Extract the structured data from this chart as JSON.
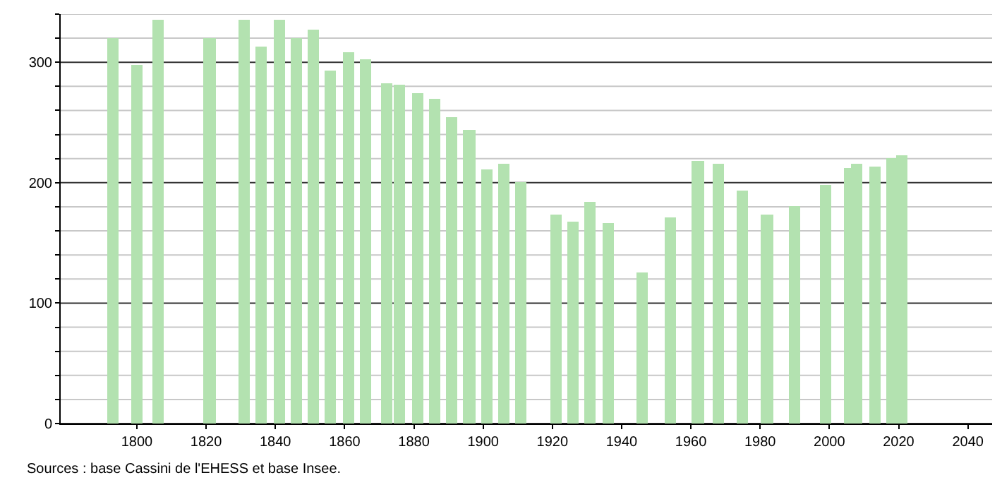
{
  "chart_data": {
    "type": "bar",
    "x": [
      1793,
      1800,
      1806,
      1821,
      1831,
      1836,
      1841,
      1846,
      1851,
      1856,
      1861,
      1866,
      1872,
      1876,
      1881,
      1886,
      1891,
      1896,
      1901,
      1906,
      1911,
      1921,
      1926,
      1931,
      1936,
      1946,
      1954,
      1962,
      1968,
      1975,
      1982,
      1990,
      1999,
      2006,
      2008,
      2013,
      2018,
      2021
    ],
    "values": [
      320,
      298,
      335,
      320,
      335,
      313,
      335,
      320,
      327,
      293,
      308,
      302,
      282,
      281,
      274,
      270,
      255,
      244,
      211,
      216,
      200,
      174,
      168,
      184,
      166,
      126,
      171,
      218,
      216,
      194,
      173,
      180,
      198,
      212,
      216,
      213,
      221,
      223
    ],
    "color": "#b3e2b0",
    "xlim": [
      1778,
      2047
    ],
    "xticks": [
      1800,
      1820,
      1840,
      1860,
      1880,
      1900,
      1920,
      1940,
      1960,
      1980,
      2000,
      2020,
      2040
    ],
    "ylim": [
      0,
      340
    ],
    "yticks": [
      0,
      {
        "value": 20,
        "label": null
      },
      {
        "value": 40,
        "label": null
      },
      {
        "value": 60,
        "label": null
      },
      {
        "value": 80,
        "label": null
      },
      100,
      {
        "value": 120,
        "label": null
      },
      {
        "value": 140,
        "label": null
      },
      {
        "value": 160,
        "label": null
      },
      {
        "value": 180,
        "label": null
      },
      200,
      {
        "value": 220,
        "label": null
      },
      {
        "value": 240,
        "label": null
      },
      {
        "value": 260,
        "label": null
      },
      {
        "value": 280,
        "label": null
      },
      300,
      {
        "value": 320,
        "label": null
      },
      {
        "value": 340,
        "label": null
      }
    ],
    "grid": "y",
    "annotations": [
      "Sources : base Cassini de l'EHESS et base Insee."
    ]
  }
}
